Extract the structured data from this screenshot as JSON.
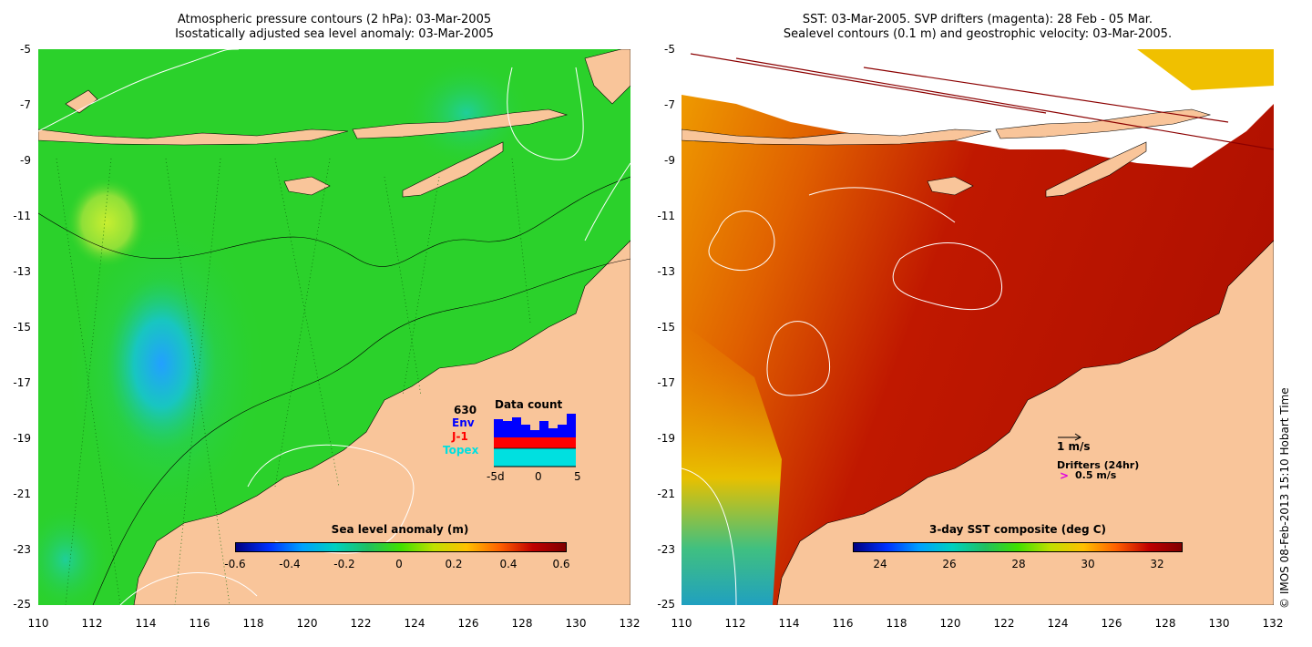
{
  "left": {
    "title_line1": "Atmospheric pressure contours (2 hPa): 03-Mar-2005",
    "title_line2": "Isostatically adjusted sea level anomaly: 03-Mar-2005",
    "colorbar_title": "Sea level anomaly (m)",
    "colorbar_ticks": [
      "-0.6",
      "-0.4",
      "-0.2",
      "0",
      "0.2",
      "0.4",
      "0.6"
    ],
    "inset": {
      "title": "Data count",
      "count": "630",
      "env": "Env",
      "j1": "J-1",
      "topex": "Topex",
      "x_labels": [
        "-5d",
        "0",
        "5"
      ],
      "colors": {
        "env": "#0000ff",
        "j1": "#ff0000",
        "topex": "#00e0e0"
      }
    }
  },
  "right": {
    "title_line1": "SST: 03-Mar-2005. SVP drifters (magenta): 28 Feb - 05 Mar.",
    "title_line2": "Sealevel contours (0.1 m) and geostrophic velocity: 03-Mar-2005.",
    "colorbar_title": "3-day SST composite (deg C)",
    "colorbar_ticks": [
      "24",
      "26",
      "28",
      "30",
      "32"
    ],
    "velocity_legend": "1 m/s",
    "drifters_label": "Drifters (24hr)",
    "drifter_speed": "0.5 m/s",
    "drifter_glyph": ">"
  },
  "lat_ticks": [
    "-5",
    "-7",
    "-9",
    "-11",
    "-13",
    "-15",
    "-17",
    "-19",
    "-21",
    "-23",
    "-25"
  ],
  "lon_ticks": [
    "110",
    "112",
    "114",
    "116",
    "118",
    "120",
    "122",
    "124",
    "126",
    "128",
    "130",
    "132"
  ],
  "copyright": "© IMOS 08-Feb-2013 15:10 Hobart Time",
  "colors": {
    "land": "#f9c59a",
    "ocean_green": "#2bd12b",
    "sst_red": "#c01800"
  }
}
